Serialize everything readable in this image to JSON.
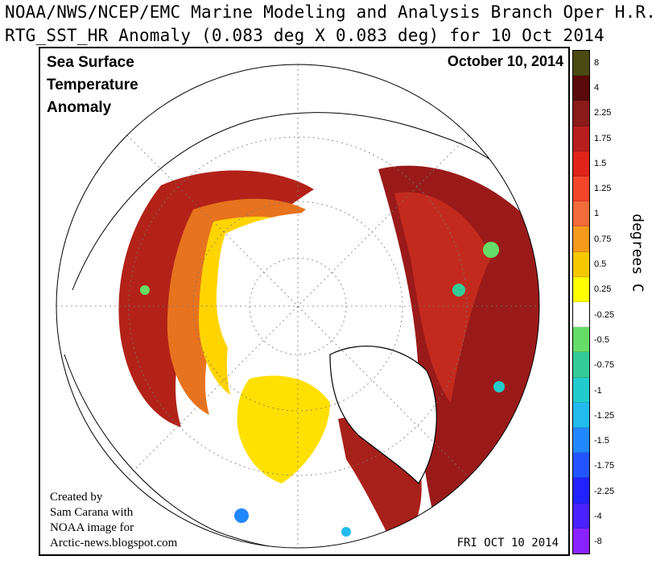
{
  "header": {
    "title_line1": "NOAA/NWS/NCEP/EMC Marine Modeling and Analysis Branch Oper H.R.",
    "title_line2": "RTG_SST_HR Anomaly (0.083 deg X 0.083 deg) for 10 Oct 2014"
  },
  "map": {
    "overlay_title_line1": "Sea Surface",
    "overlay_title_line2": "Temperature",
    "overlay_title_line3": "Anomaly",
    "overlay_date": "October 10, 2014",
    "credit_line1": "Created by",
    "credit_line2": "Sam Carana with",
    "credit_line3": "NOAA image for",
    "credit_line4": "Arctic-news.blogspot.com",
    "run_stamp": "FRI OCT 10 2014"
  },
  "legend": {
    "units": "degrees C",
    "bins": [
      {
        "label": "8",
        "color": "#4a4a12"
      },
      {
        "label": "4",
        "color": "#5a0a0a"
      },
      {
        "label": "2.25",
        "color": "#8b1a1a"
      },
      {
        "label": "1.75",
        "color": "#b81e1e"
      },
      {
        "label": "1.5",
        "color": "#e0221a"
      },
      {
        "label": "1.25",
        "color": "#f2452a"
      },
      {
        "label": "1",
        "color": "#f26b3a"
      },
      {
        "label": "0.75",
        "color": "#f59a1a"
      },
      {
        "label": "0.5",
        "color": "#f5c800"
      },
      {
        "label": "0.25",
        "color": "#ffff00"
      },
      {
        "label": "-0.25",
        "color": "#ffffff"
      },
      {
        "label": "-0.5",
        "color": "#66dd66"
      },
      {
        "label": "-0.75",
        "color": "#33cc99"
      },
      {
        "label": "-1",
        "color": "#22cccc"
      },
      {
        "label": "-1.25",
        "color": "#22bbee"
      },
      {
        "label": "-1.5",
        "color": "#2288ff"
      },
      {
        "label": "-1.75",
        "color": "#2255ff"
      },
      {
        "label": "-2.25",
        "color": "#2222ff"
      },
      {
        "label": "-4",
        "color": "#4a22ff"
      },
      {
        "label": "-8",
        "color": "#8a22ff"
      }
    ]
  }
}
